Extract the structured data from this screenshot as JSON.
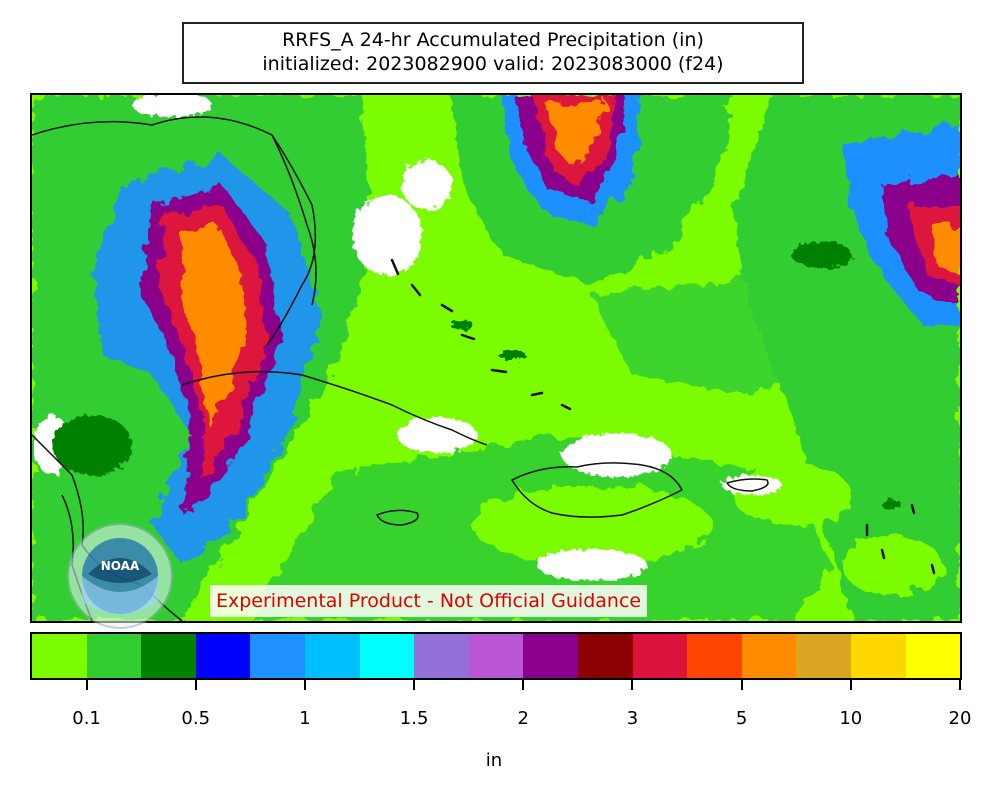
{
  "title": {
    "line1": "RRFS_A 24-hr Accumulated Precipitation (in)",
    "line2": "initialized: 2023082900 valid: 2023083000 (f24)"
  },
  "disclaimer": "Experimental Product - Not Official Guidance",
  "logo": {
    "icon": "noaa-logo",
    "text": "NOAA"
  },
  "colorbar": {
    "unit": "in",
    "colors": [
      "#7cfc00",
      "#32cd32",
      "#008000",
      "#0000ff",
      "#1e90ff",
      "#00bfff",
      "#00ffff",
      "#9370db",
      "#ba55d3",
      "#8b008b",
      "#8b0000",
      "#dc143c",
      "#ff4500",
      "#ff8c00",
      "#daa520",
      "#ffd700",
      "#ffff00"
    ],
    "ticks": [
      "0.1",
      "0.5",
      "1",
      "1.5",
      "2",
      "3",
      "5",
      "10",
      "20"
    ]
  },
  "colors": {
    "light": "#7cfc00",
    "medium": "#32cd32",
    "dark": "#008000",
    "blue": "#1e90ff",
    "purple": "#8b008b",
    "red": "#dc143c",
    "orange": "#ff8c00",
    "white": "#ffffff"
  }
}
